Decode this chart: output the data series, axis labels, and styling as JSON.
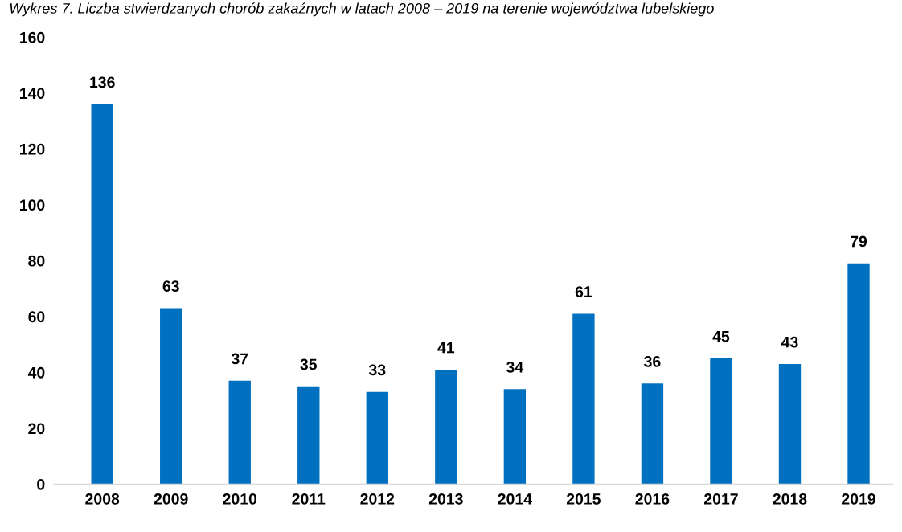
{
  "chart_data": {
    "type": "bar",
    "title": "Wykres 7. Liczba stwierdzanych chorób zakaźnych w latach 2008 – 2019 na terenie województwa lubelskiego",
    "categories": [
      "2008",
      "2009",
      "2010",
      "2011",
      "2012",
      "2013",
      "2014",
      "2015",
      "2016",
      "2017",
      "2018",
      "2019"
    ],
    "values": [
      136,
      63,
      37,
      35,
      33,
      41,
      34,
      61,
      36,
      45,
      43,
      79
    ],
    "color": "#0070c0",
    "ylim": [
      0,
      160
    ],
    "yticks": [
      0,
      20,
      40,
      60,
      80,
      100,
      120,
      140,
      160
    ],
    "grid": false,
    "data_labels": true
  }
}
